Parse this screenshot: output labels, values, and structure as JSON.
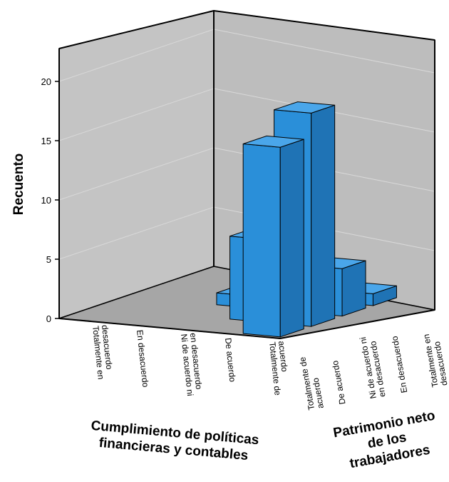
{
  "chart_data": {
    "type": "bar3d",
    "ylabel": "Recuento",
    "ylim": [
      0,
      22
    ],
    "yticks": [
      0,
      5,
      10,
      15,
      20
    ],
    "x_axis": {
      "title_lines": [
        "Cumplimiento de políticas",
        "financieras y contables"
      ],
      "categories": [
        [
          "Totalmente en",
          "desacuerdo"
        ],
        [
          "En desacuerdo"
        ],
        [
          "Ni de acuerdo ni",
          "en desacuerdo"
        ],
        [
          "De acuerdo"
        ],
        [
          "Totalmente de",
          "acuerdo"
        ]
      ]
    },
    "z_axis": {
      "title_lines": [
        "Patrimonio neto",
        "de los",
        "trabajadores"
      ],
      "categories": [
        [
          "Totalmente de",
          "acuerdo"
        ],
        [
          "De acuerdo"
        ],
        [
          "Ni de acuerdo ni",
          "en desacuerdo"
        ],
        [
          "En desacuerdo"
        ],
        [
          "Totalmente en",
          "desacuerdo"
        ]
      ]
    },
    "bars": [
      {
        "x": "De acuerdo",
        "z": "De acuerdo",
        "value": 7
      },
      {
        "x": "Ni de acuerdo ni en desacuerdo",
        "z": "Ni de acuerdo ni en desacuerdo",
        "value": 1
      },
      {
        "x": "Totalmente de acuerdo",
        "z": "De acuerdo",
        "value": 18
      },
      {
        "x": "Totalmente de acuerdo",
        "z": "Totalmente de acuerdo",
        "value": 16
      },
      {
        "x": "Totalmente de acuerdo",
        "z": "Ni de acuerdo ni en desacuerdo",
        "value": 4
      },
      {
        "x": "Totalmente de acuerdo",
        "z": "En desacuerdo",
        "value": 1
      }
    ],
    "bar_color": "#2a8fd9",
    "bar_side_color": "#1f73b5",
    "bar_top_color": "#4aa6ea",
    "wall_color": "#c4c4c4",
    "floor_color": "#a6a6a6",
    "grid": true
  }
}
